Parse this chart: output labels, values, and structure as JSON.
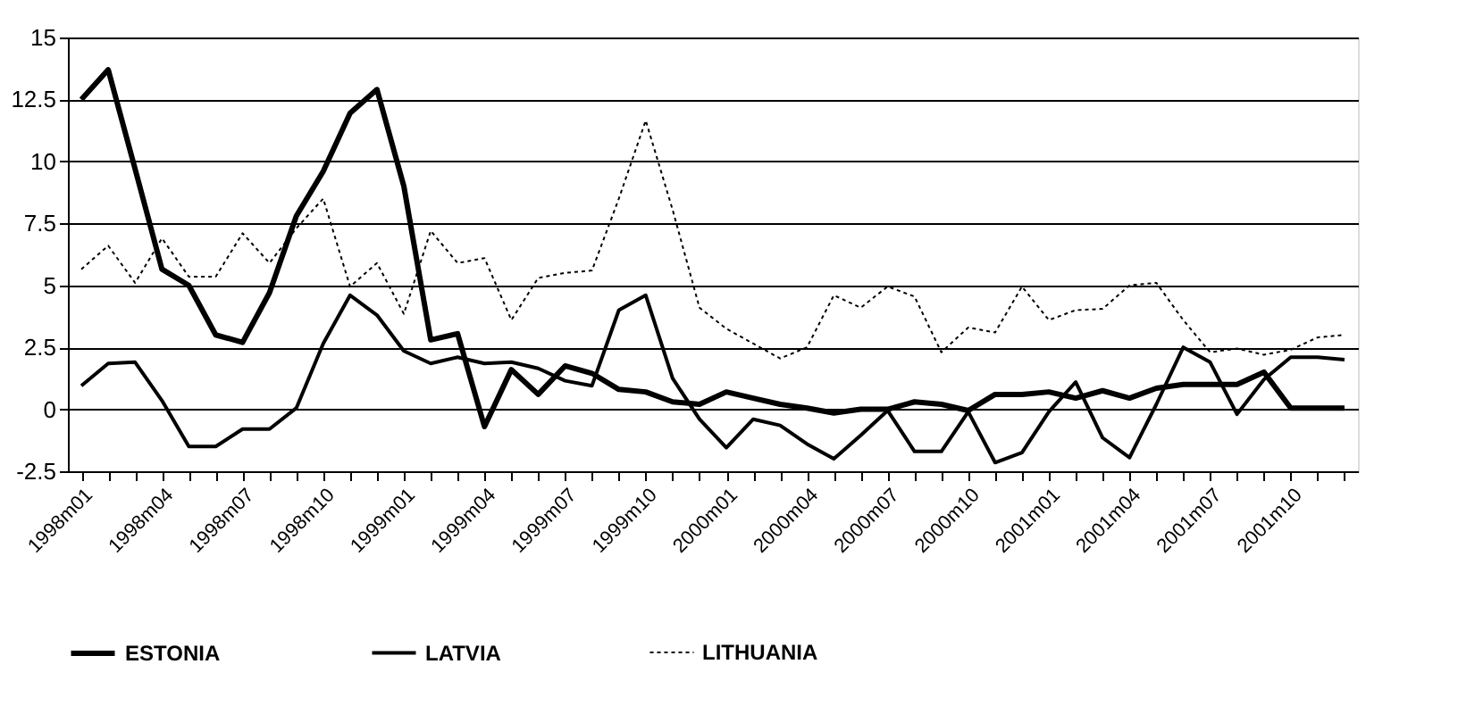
{
  "chart_data": {
    "type": "line",
    "categories": [
      "1998m01",
      null,
      null,
      "1998m04",
      null,
      null,
      "1998m07",
      null,
      null,
      "1998m10",
      null,
      null,
      "1999m01",
      null,
      null,
      "1999m04",
      null,
      null,
      "1999m07",
      null,
      null,
      "1999m10",
      null,
      null,
      "2000m01",
      null,
      null,
      "2000m04",
      null,
      null,
      "2000m07",
      null,
      null,
      "2000m10",
      null,
      null,
      "2001m01",
      null,
      null,
      "2001m04",
      null,
      null,
      "2001m07",
      null,
      null,
      "2001m10",
      null,
      null
    ],
    "series": [
      {
        "name": "ESTONIA",
        "color": "#000000",
        "line_style": "solid",
        "values": [
          12.5,
          13.7,
          9.7,
          5.65,
          5.0,
          3.0,
          2.7,
          4.7,
          7.8,
          9.6,
          11.95,
          12.9,
          9.0,
          2.8,
          3.05,
          -0.7,
          1.6,
          0.6,
          1.75,
          1.45,
          0.8,
          0.7,
          0.3,
          0.2,
          0.7,
          0.45,
          0.2,
          0.05,
          -0.15,
          0.0,
          0.0,
          0.3,
          0.2,
          -0.05,
          0.6,
          0.6,
          0.7,
          0.45,
          0.75,
          0.45,
          0.85,
          1.0,
          1.0,
          1.0,
          1.5,
          0.05,
          0.05,
          0.05
        ]
      },
      {
        "name": "LATVIA",
        "color": "#000000",
        "line_style": "solid",
        "values": [
          0.95,
          1.85,
          1.9,
          0.35,
          -1.5,
          -1.5,
          -0.8,
          -0.8,
          0.05,
          2.65,
          4.6,
          3.8,
          2.35,
          1.85,
          2.1,
          1.85,
          1.9,
          1.65,
          1.15,
          0.95,
          4.0,
          4.6,
          1.25,
          -0.4,
          -1.55,
          -0.4,
          -0.65,
          -1.4,
          -2.0,
          -1.05,
          -0.05,
          -1.7,
          -1.7,
          -0.1,
          -2.15,
          -1.75,
          -0.1,
          1.1,
          -1.15,
          -1.95,
          0.2,
          2.5,
          1.9,
          -0.2,
          1.2,
          2.1,
          2.1,
          2.0
        ]
      },
      {
        "name": "LITHUANIA",
        "color": "#000000",
        "line_style": "dotted",
        "values": [
          5.65,
          6.6,
          5.1,
          6.9,
          5.35,
          5.35,
          7.1,
          5.9,
          7.3,
          8.5,
          4.95,
          5.9,
          3.85,
          7.2,
          5.9,
          6.1,
          3.6,
          5.3,
          5.5,
          5.6,
          8.5,
          11.65,
          8.05,
          4.1,
          3.25,
          2.65,
          2.05,
          2.5,
          4.6,
          4.1,
          4.95,
          4.55,
          2.3,
          3.3,
          3.1,
          4.95,
          3.6,
          4.0,
          4.05,
          5.0,
          5.1,
          3.6,
          2.3,
          2.45,
          2.2,
          2.4,
          2.9,
          3.0
        ]
      }
    ],
    "ylim": [
      -2.5,
      15
    ],
    "yticks": [
      -2.5,
      0,
      2.5,
      5,
      7.5,
      10,
      12.5,
      15
    ],
    "grid": "y",
    "legend": "bottom"
  }
}
